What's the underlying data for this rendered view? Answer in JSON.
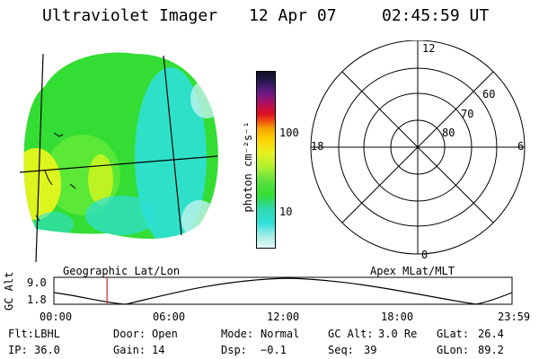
{
  "header": {
    "title": "Ultraviolet Imager",
    "date": "12 Apr 07",
    "time": "02:45:59 UT"
  },
  "colorbar": {
    "unit_label": "photon cm⁻²s⁻¹",
    "tick_labels": [
      "100",
      "10"
    ]
  },
  "image_panel": {
    "caption": "Geographic Lat/Lon",
    "colors": {
      "green": "#33dd33",
      "cyan": "#2ee0d8",
      "yellow": "#ddf51e",
      "lime": "#7df03b"
    }
  },
  "polar_plot": {
    "caption": "Apex MLat/MLT",
    "mlt_labels": {
      "top": "12",
      "left": "18",
      "right": "6",
      "bottom": "0"
    },
    "mlat_labels": [
      "60",
      "70",
      "80"
    ]
  },
  "altitude_plot": {
    "axis_label": "GC Alt",
    "y_tick_top": "9.0",
    "y_tick_bottom": "1.8",
    "x_ticks": [
      "00:00",
      "06:00",
      "12:00",
      "18:00",
      "23:59"
    ],
    "marker_color": "#cc2222",
    "marker_fraction": 0.116
  },
  "info": {
    "row1": [
      {
        "label": "Flt:",
        "value": "LBHL"
      },
      {
        "label": "Door:",
        "value": "Open"
      },
      {
        "label": "Mode:",
        "value": "Normal"
      },
      {
        "label": "GC Alt:",
        "value": "3.0 Re"
      },
      {
        "label": "GLat:",
        "value": "26.4"
      }
    ],
    "row2": [
      {
        "label": "IP:",
        "value": "36.0"
      },
      {
        "label": "Gain:",
        "value": "14"
      },
      {
        "label": "Dsp:",
        "value": "−0.1"
      },
      {
        "label": "Seq:",
        "value": "39"
      },
      {
        "label": "GLon:",
        "value": "89.2"
      }
    ]
  }
}
